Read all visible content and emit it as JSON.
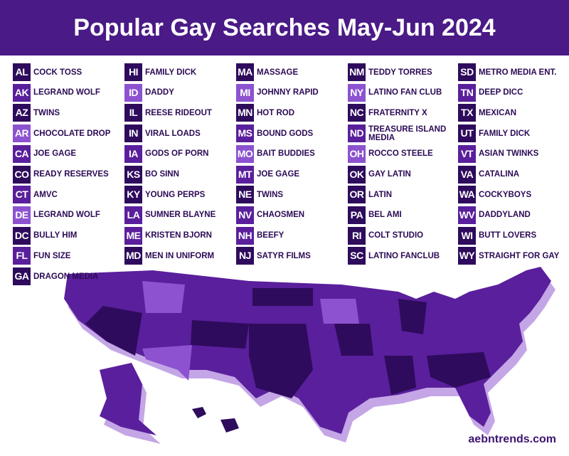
{
  "header": {
    "title": "Popular Gay Searches May-Jun 2024"
  },
  "shades": {
    "dark": "#2e0b5c",
    "medium": "#5a1f9c",
    "light": "#8c52d0"
  },
  "columns": [
    [
      {
        "code": "AL",
        "label": "COCK TOSS",
        "shade": "dark"
      },
      {
        "code": "AK",
        "label": "LEGRAND WOLF",
        "shade": "medium"
      },
      {
        "code": "AZ",
        "label": "TWINS",
        "shade": "dark"
      },
      {
        "code": "AR",
        "label": "CHOCOLATE DROP",
        "shade": "light"
      },
      {
        "code": "CA",
        "label": "JOE GAGE",
        "shade": "medium"
      },
      {
        "code": "CO",
        "label": "READY RESERVES",
        "shade": "dark"
      },
      {
        "code": "CT",
        "label": "AMVC",
        "shade": "medium"
      },
      {
        "code": "DE",
        "label": "LEGRAND WOLF",
        "shade": "light"
      },
      {
        "code": "DC",
        "label": "BULLY HIM",
        "shade": "dark"
      },
      {
        "code": "FL",
        "label": "FUN SIZE",
        "shade": "medium"
      },
      {
        "code": "GA",
        "label": "DRAGON MEDIA",
        "shade": "dark"
      }
    ],
    [
      {
        "code": "HI",
        "label": "FAMILY DICK",
        "shade": "dark"
      },
      {
        "code": "ID",
        "label": "DADDY",
        "shade": "light"
      },
      {
        "code": "IL",
        "label": "REESE RIDEOUT",
        "shade": "dark"
      },
      {
        "code": "IN",
        "label": "VIRAL LOADS",
        "shade": "dark"
      },
      {
        "code": "IA",
        "label": "GODS OF PORN",
        "shade": "medium"
      },
      {
        "code": "KS",
        "label": "BO SINN",
        "shade": "dark"
      },
      {
        "code": "KY",
        "label": "YOUNG PERPS",
        "shade": "dark"
      },
      {
        "code": "LA",
        "label": "SUMNER BLAYNE",
        "shade": "medium"
      },
      {
        "code": "ME",
        "label": "KRISTEN BJORN",
        "shade": "medium"
      },
      {
        "code": "MD",
        "label": "MEN IN UNIFORM",
        "shade": "dark"
      }
    ],
    [
      {
        "code": "MA",
        "label": "MASSAGE",
        "shade": "dark"
      },
      {
        "code": "MI",
        "label": "JOHNNY RAPID",
        "shade": "light"
      },
      {
        "code": "MN",
        "label": "HOT ROD",
        "shade": "dark"
      },
      {
        "code": "MS",
        "label": "BOUND GODS",
        "shade": "medium"
      },
      {
        "code": "MO",
        "label": "BAIT BUDDIES",
        "shade": "light"
      },
      {
        "code": "MT",
        "label": "JOE GAGE",
        "shade": "medium"
      },
      {
        "code": "NE",
        "label": "TWINS",
        "shade": "dark"
      },
      {
        "code": "NV",
        "label": "CHAOSMEN",
        "shade": "medium"
      },
      {
        "code": "NH",
        "label": "BEEFY",
        "shade": "medium"
      },
      {
        "code": "NJ",
        "label": "SATYR FILMS",
        "shade": "dark"
      }
    ],
    [
      {
        "code": "NM",
        "label": "TEDDY TORRES",
        "shade": "dark"
      },
      {
        "code": "NY",
        "label": "LATINO FAN CLUB",
        "shade": "light"
      },
      {
        "code": "NC",
        "label": "FRATERNITY X",
        "shade": "dark"
      },
      {
        "code": "ND",
        "label": "TREASURE ISLAND MEDIA",
        "shade": "medium"
      },
      {
        "code": "OH",
        "label": "ROCCO STEELE",
        "shade": "light"
      },
      {
        "code": "OK",
        "label": "GAY LATIN",
        "shade": "dark"
      },
      {
        "code": "OR",
        "label": "LATIN",
        "shade": "dark"
      },
      {
        "code": "PA",
        "label": "BEL AMI",
        "shade": "dark"
      },
      {
        "code": "RI",
        "label": "COLT STUDIO",
        "shade": "dark"
      },
      {
        "code": "SC",
        "label": "LATINO FANCLUB",
        "shade": "dark"
      }
    ],
    [
      {
        "code": "SD",
        "label": "METRO MEDIA ENT.",
        "shade": "dark"
      },
      {
        "code": "TN",
        "label": "DEEP DICC",
        "shade": "medium"
      },
      {
        "code": "TX",
        "label": "MEXICAN",
        "shade": "dark"
      },
      {
        "code": "UT",
        "label": "FAMILY DICK",
        "shade": "dark"
      },
      {
        "code": "VT",
        "label": "ASIAN TWINKS",
        "shade": "medium"
      },
      {
        "code": "VA",
        "label": "CATALINA",
        "shade": "dark"
      },
      {
        "code": "WA",
        "label": "COCKYBOYS",
        "shade": "dark"
      },
      {
        "code": "WV",
        "label": "DADDYLAND",
        "shade": "medium"
      },
      {
        "code": "WI",
        "label": "BUTT LOVERS",
        "shade": "dark"
      },
      {
        "code": "WY",
        "label": "STRAIGHT FOR GAY",
        "shade": "dark"
      }
    ]
  ],
  "footer": "aebntrends.com"
}
